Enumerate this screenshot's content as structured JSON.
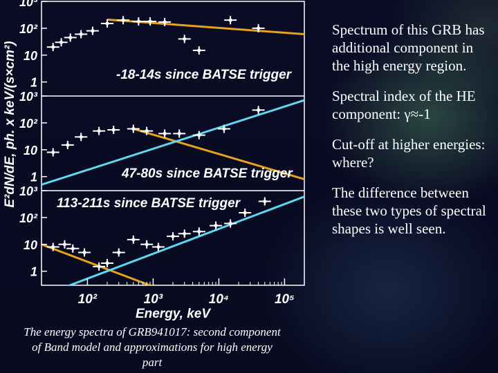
{
  "notes": [
    "Spectrum of this GRB has additional component in the high energy region.",
    "Spectral index of the HE component: γ≈-1",
    "Cut-off at higher energies: where?",
    "The difference between these two types of spectral shapes is well seen."
  ],
  "caption": "The  energy spectra of GRB941017: second component of Band model and approximations for high energy part",
  "chart_data": {
    "type": "scatter",
    "xlabel": "Energy, keV",
    "ylabel": "E²dN/dE, ph. x keV/(s×cm²)",
    "xlim": [
      20,
      200000
    ],
    "ylim": [
      0.3,
      1000
    ],
    "x_scale": "log",
    "y_scale": "log",
    "x_ticks": [
      100,
      1000,
      10000,
      100000
    ],
    "x_tick_labels": [
      "10²",
      "10³",
      "10⁴",
      "10⁵"
    ],
    "y_ticks": [
      1,
      10,
      100,
      1000
    ],
    "y_tick_labels": [
      "1",
      "10",
      "10²",
      "10³"
    ],
    "colors": {
      "band": "#e8a21c",
      "he": "#5fd8f0",
      "data": "#ffffff"
    },
    "panels": [
      {
        "label": "-18-14s since BATSE trigger",
        "points": [
          {
            "x": 30,
            "y": 20
          },
          {
            "x": 40,
            "y": 30
          },
          {
            "x": 55,
            "y": 45
          },
          {
            "x": 80,
            "y": 60
          },
          {
            "x": 120,
            "y": 80
          },
          {
            "x": 200,
            "y": 150
          },
          {
            "x": 350,
            "y": 200
          },
          {
            "x": 600,
            "y": 180
          },
          {
            "x": 900,
            "y": 180
          },
          {
            "x": 1500,
            "y": 170
          },
          {
            "x": 3000,
            "y": 40
          },
          {
            "x": 5000,
            "y": 15
          },
          {
            "x": 15000,
            "y": 200
          },
          {
            "x": 40000,
            "y": 100
          }
        ],
        "band": [
          {
            "x": 200,
            "y": 210
          },
          {
            "x": 200000,
            "y": 60
          }
        ]
      },
      {
        "label": "47-80s since BATSE trigger",
        "points": [
          {
            "x": 30,
            "y": 8
          },
          {
            "x": 50,
            "y": 15
          },
          {
            "x": 80,
            "y": 30
          },
          {
            "x": 150,
            "y": 50
          },
          {
            "x": 250,
            "y": 55
          },
          {
            "x": 500,
            "y": 60
          },
          {
            "x": 800,
            "y": 50
          },
          {
            "x": 1500,
            "y": 40
          },
          {
            "x": 2500,
            "y": 40
          },
          {
            "x": 5000,
            "y": 35
          },
          {
            "x": 12000,
            "y": 60
          },
          {
            "x": 40000,
            "y": 300
          }
        ],
        "band": [
          {
            "x": 500,
            "y": 60
          },
          {
            "x": 200000,
            "y": 0.8
          }
        ],
        "he": [
          {
            "x": 20,
            "y": 0.5
          },
          {
            "x": 200000,
            "y": 700
          }
        ]
      },
      {
        "label": "113-211s since BATSE trigger",
        "points": [
          {
            "x": 30,
            "y": 8
          },
          {
            "x": 45,
            "y": 10
          },
          {
            "x": 60,
            "y": 7
          },
          {
            "x": 90,
            "y": 5
          },
          {
            "x": 150,
            "y": 1.5
          },
          {
            "x": 200,
            "y": 2
          },
          {
            "x": 300,
            "y": 5
          },
          {
            "x": 500,
            "y": 15
          },
          {
            "x": 800,
            "y": 10
          },
          {
            "x": 1200,
            "y": 8
          },
          {
            "x": 2000,
            "y": 20
          },
          {
            "x": 3000,
            "y": 25
          },
          {
            "x": 5000,
            "y": 30
          },
          {
            "x": 9000,
            "y": 50
          },
          {
            "x": 15000,
            "y": 60
          },
          {
            "x": 25000,
            "y": 150
          },
          {
            "x": 50000,
            "y": 400
          }
        ],
        "band": [
          {
            "x": 20,
            "y": 10
          },
          {
            "x": 200000,
            "y": 0.002
          }
        ],
        "he": [
          {
            "x": 20,
            "y": 0.12
          },
          {
            "x": 200000,
            "y": 600
          }
        ]
      }
    ]
  }
}
